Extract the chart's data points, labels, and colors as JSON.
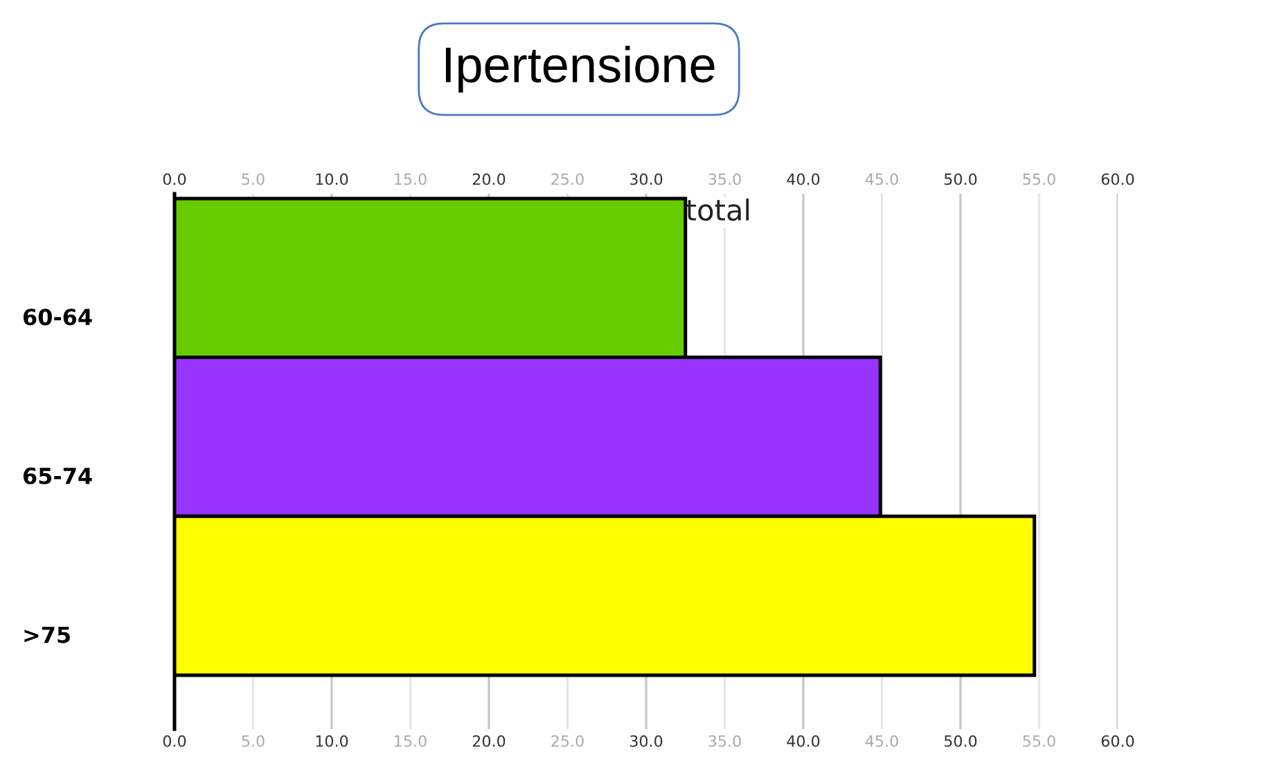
{
  "chart_data": {
    "type": "bar",
    "orientation": "horizontal",
    "title": "Ipertensione",
    "categories": [
      "60-64",
      "65-74",
      ">75"
    ],
    "series": [
      {
        "name": "total",
        "colors": [
          "#66cc00",
          "#9933ff",
          "#ffff00"
        ],
        "values": [
          32.5,
          44.9,
          54.7
        ]
      }
    ],
    "xlim": [
      0,
      60
    ],
    "xticks": [
      {
        "value": 0,
        "label": "0.0"
      },
      {
        "value": 5,
        "label": "5.0"
      },
      {
        "value": 10,
        "label": "10.0"
      },
      {
        "value": 15,
        "label": "15.0"
      },
      {
        "value": 20,
        "label": "20.0"
      },
      {
        "value": 25,
        "label": "25.0"
      },
      {
        "value": 30,
        "label": "30.0"
      },
      {
        "value": 35,
        "label": "35.0"
      },
      {
        "value": 40,
        "label": "40.0"
      },
      {
        "value": 45,
        "label": "45.0"
      },
      {
        "value": 50,
        "label": "50.0"
      },
      {
        "value": 55,
        "label": "55.0"
      },
      {
        "value": 60,
        "label": "60.0"
      }
    ],
    "x2lim": [
      0,
      60
    ],
    "x2ticks": [
      {
        "value": 0,
        "label": "0.0"
      },
      {
        "value": 5,
        "label": "5.0"
      },
      {
        "value": 10,
        "label": "10.0"
      },
      {
        "value": 15,
        "label": "15.0"
      },
      {
        "value": 20,
        "label": "20.0"
      },
      {
        "value": 25,
        "label": "25.0"
      },
      {
        "value": 30,
        "label": "30.0"
      },
      {
        "value": 35,
        "label": "35.0"
      },
      {
        "value": 40,
        "label": "40.0"
      },
      {
        "value": 45,
        "label": "45.0"
      },
      {
        "value": 50,
        "label": "50.0"
      },
      {
        "value": 55,
        "label": "55.0"
      },
      {
        "value": 60,
        "label": "60.0"
      }
    ],
    "grid": "x"
  }
}
